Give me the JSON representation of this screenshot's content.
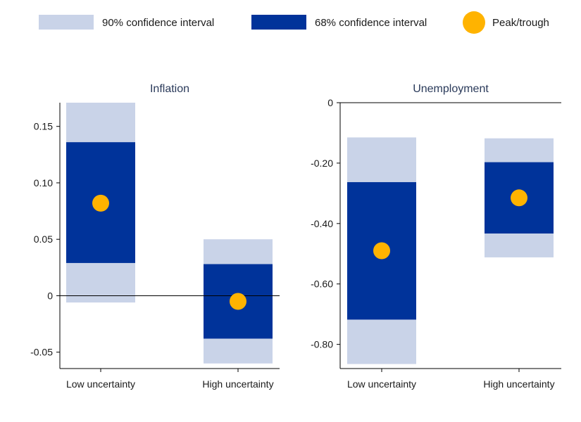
{
  "legend": {
    "ci90_label": "90% confidence interval",
    "ci68_label": "68% confidence interval",
    "point_label": "Peak/trough"
  },
  "colors": {
    "ci90": "#c9d3e8",
    "ci68": "#00339a",
    "point": "#ffb300",
    "axis": "#000000"
  },
  "chart_data": [
    {
      "type": "bar",
      "title": "Inflation",
      "categories": [
        "Low uncertainty",
        "High uncertainty"
      ],
      "ylim": [
        -0.06,
        0.17
      ],
      "yticks": [
        {
          "value": 0.15,
          "label": "0.15"
        },
        {
          "value": 0.1,
          "label": "0.10"
        },
        {
          "value": 0.05,
          "label": "0.05"
        },
        {
          "value": 0,
          "label": "0"
        },
        {
          "value": -0.05,
          "label": "-0.05"
        }
      ],
      "zero_line": true,
      "series": [
        {
          "name": "90% confidence interval",
          "low": [
            -0.006,
            -0.06
          ],
          "high": [
            0.171,
            0.05
          ]
        },
        {
          "name": "68% confidence interval",
          "low": [
            0.029,
            -0.038
          ],
          "high": [
            0.136,
            0.028
          ]
        },
        {
          "name": "Peak/trough",
          "values": [
            0.082,
            -0.005
          ]
        }
      ]
    },
    {
      "type": "bar",
      "title": "Unemployment",
      "categories": [
        "Low uncertainty",
        "High uncertainty"
      ],
      "ylim": [
        -0.88,
        0.0
      ],
      "yticks": [
        {
          "value": 0,
          "label": "0"
        },
        {
          "value": -0.2,
          "label": "-0.20"
        },
        {
          "value": -0.4,
          "label": "-0.40"
        },
        {
          "value": -0.6,
          "label": "-0.60"
        },
        {
          "value": -0.8,
          "label": "-0.80"
        }
      ],
      "zero_line": true,
      "series": [
        {
          "name": "90% confidence interval",
          "low": [
            -0.865,
            -0.512
          ],
          "high": [
            -0.115,
            -0.118
          ]
        },
        {
          "name": "68% confidence interval",
          "low": [
            -0.718,
            -0.433
          ],
          "high": [
            -0.263,
            -0.197
          ]
        },
        {
          "name": "Peak/trough",
          "values": [
            -0.49,
            -0.315
          ]
        }
      ]
    }
  ]
}
